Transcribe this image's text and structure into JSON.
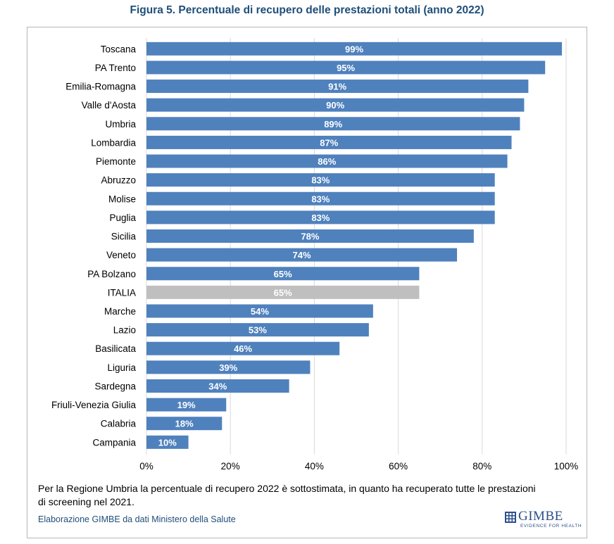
{
  "figure_title": "Figura 5. Percentuale di recupero delle prestazioni totali (anno 2022)",
  "note": "Per la Regione Umbria la percentuale di recupero 2022 è sottostimata, in quanto ha recuperato tutte le prestazioni di screening nel 2021.",
  "source": "Elaborazione GIMBE da dati Ministero della Salute",
  "logo": {
    "word": "GIMBE",
    "tagline": "EVIDENCE FOR HEALTH",
    "icon": "gimbe-grid-icon"
  },
  "colors": {
    "bar": "#4f81bd",
    "highlight_bar": "#bfbfbf",
    "title": "#1f4e79",
    "grid": "#d9d9d9"
  },
  "chart_data": {
    "type": "bar",
    "orientation": "horizontal",
    "categories": [
      "Toscana",
      "PA Trento",
      "Emilia-Romagna",
      "Valle d'Aosta",
      "Umbria",
      "Lombardia",
      "Piemonte",
      "Abruzzo",
      "Molise",
      "Puglia",
      "Sicilia",
      "Veneto",
      "PA Bolzano",
      "ITALIA",
      "Marche",
      "Lazio",
      "Basilicata",
      "Liguria",
      "Sardegna",
      "Friuli-Venezia Giulia",
      "Calabria",
      "Campania"
    ],
    "values": [
      99,
      95,
      91,
      90,
      89,
      87,
      86,
      83,
      83,
      83,
      78,
      74,
      65,
      65,
      54,
      53,
      46,
      39,
      34,
      19,
      18,
      10
    ],
    "labels": [
      "99%",
      "95%",
      "91%",
      "90%",
      "89%",
      "87%",
      "86%",
      "83%",
      "83%",
      "83%",
      "78%",
      "74%",
      "65%",
      "65%",
      "54%",
      "53%",
      "46%",
      "39%",
      "34%",
      "19%",
      "18%",
      "10%"
    ],
    "highlight": "ITALIA",
    "xlim": [
      0,
      100
    ],
    "xticks": [
      "0%",
      "20%",
      "40%",
      "60%",
      "80%",
      "100%"
    ],
    "xtick_values": [
      0,
      20,
      40,
      60,
      80,
      100
    ],
    "grid": true,
    "legend": false
  }
}
